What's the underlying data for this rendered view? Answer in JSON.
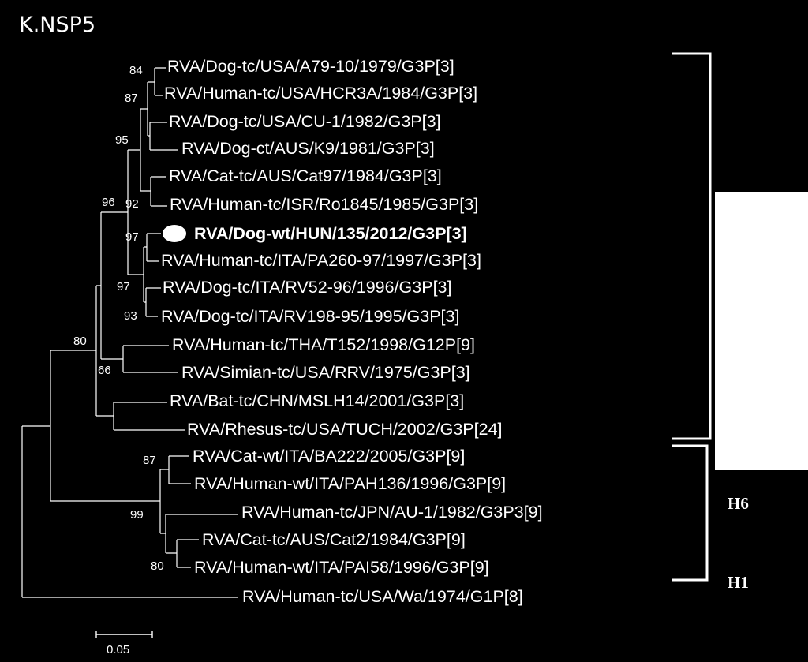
{
  "title": "K.NSP5",
  "colors": {
    "background": "#000000",
    "foreground": "#ffffff"
  },
  "taxa": [
    "RVA/Dog-tc/USA/A79-10/1979/G3P[3]",
    "RVA/Human-tc/USA/HCR3A/1984/G3P[3]",
    "RVA/Dog-tc/USA/CU-1/1982/G3P[3]",
    "RVA/Dog-ct/AUS/K9/1981/G3P[3]",
    "RVA/Cat-tc/AUS/Cat97/1984/G3P[3]",
    "RVA/Human-tc/ISR/Ro1845/1985/G3P[3]",
    "RVA/Dog-wt/HUN/135/2012/G3P[3]",
    "RVA/Human-tc/ITA/PA260-97/1997/G3P[3]",
    "RVA/Dog-tc/ITA/RV52-96/1996/G3P[3]",
    "RVA/Dog-tc/ITA/RV198-95/1995/G3P[3]",
    "RVA/Human-tc/THA/T152/1998/G12P[9]",
    "RVA/Simian-tc/USA/RRV/1975/G3P[3]",
    "RVA/Bat-tc/CHN/MSLH14/2001/G3P[3]",
    "RVA/Rhesus-tc/USA/TUCH/2002/G3P[24]",
    "RVA/Cat-wt/ITA/BA222/2005/G3P[9]",
    "RVA/Human-wt/ITA/PAH136/1996/G3P[9]",
    "RVA/Human-tc/JPN/AU-1/1982/G3P3[9]",
    "RVA/Cat-tc/AUS/Cat2/1984/G3P[9]",
    "RVA/Human-wt/ITA/PAI58/1996/G3P[9]",
    "RVA/Human-tc/USA/Wa/1974/G1P[8]"
  ],
  "highlighted_taxon": "RVA/Dog-wt/HUN/135/2012/G3P[3]",
  "bootstrap": [
    "84",
    "87",
    "95",
    "96",
    "92",
    "97",
    "97",
    "93",
    "80",
    "66",
    "87",
    "99",
    "80"
  ],
  "groups": [
    "H6",
    "H1"
  ],
  "scale_bar": "0.05"
}
